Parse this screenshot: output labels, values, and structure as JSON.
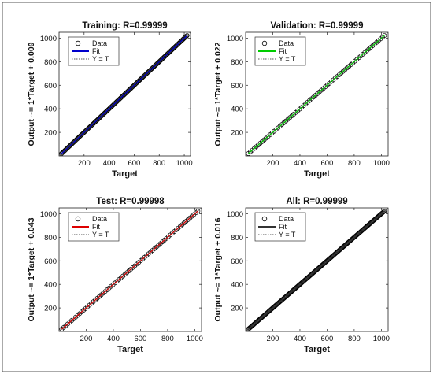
{
  "colors": {
    "data_marker": "#000000",
    "fit_training": "#0000cc",
    "fit_validation": "#00cc00",
    "fit_test": "#dd0000",
    "fit_all": "#333333",
    "identity": "#555555",
    "border": "#555555"
  },
  "legend_labels": {
    "data": "Data",
    "fit": "Fit",
    "identity": "Y = T"
  },
  "chart_data": [
    {
      "type": "scatter",
      "title": "Training: R=0.99999",
      "xlabel": "Target",
      "ylabel": "Output ~= 1*Target + 0.009",
      "xlim": [
        0,
        1050
      ],
      "ylim": [
        0,
        1050
      ],
      "xticks": [
        200,
        400,
        600,
        800,
        1000
      ],
      "yticks": [
        200,
        400,
        600,
        800,
        1000
      ],
      "fit": {
        "slope": 1,
        "intercept": 0.009
      },
      "data_range": [
        20,
        1023
      ],
      "point_count": 160,
      "series": [
        {
          "name": "Data",
          "kind": "markers"
        },
        {
          "name": "Fit",
          "kind": "line"
        },
        {
          "name": "Y = T",
          "kind": "dotted-line"
        }
      ],
      "legend": "top-left",
      "fit_color_key": "fit_training"
    },
    {
      "type": "scatter",
      "title": "Validation: R=0.99999",
      "xlabel": "Target",
      "ylabel": "Output ~= 1*Target + 0.022",
      "xlim": [
        0,
        1050
      ],
      "ylim": [
        0,
        1050
      ],
      "xticks": [
        200,
        400,
        600,
        800,
        1000
      ],
      "yticks": [
        200,
        400,
        600,
        800,
        1000
      ],
      "fit": {
        "slope": 1,
        "intercept": 0.022
      },
      "data_range": [
        20,
        1023
      ],
      "point_count": 70,
      "series": [
        {
          "name": "Data",
          "kind": "markers"
        },
        {
          "name": "Fit",
          "kind": "line"
        },
        {
          "name": "Y = T",
          "kind": "dotted-line"
        }
      ],
      "legend": "top-left",
      "fit_color_key": "fit_validation"
    },
    {
      "type": "scatter",
      "title": "Test: R=0.99998",
      "xlabel": "Target",
      "ylabel": "Output ~= 1*Target + 0.043",
      "xlim": [
        0,
        1050
      ],
      "ylim": [
        0,
        1050
      ],
      "xticks": [
        200,
        400,
        600,
        800,
        1000
      ],
      "yticks": [
        200,
        400,
        600,
        800,
        1000
      ],
      "fit": {
        "slope": 1,
        "intercept": 0.043
      },
      "data_range": [
        20,
        1023
      ],
      "point_count": 70,
      "series": [
        {
          "name": "Data",
          "kind": "markers"
        },
        {
          "name": "Fit",
          "kind": "line"
        },
        {
          "name": "Y = T",
          "kind": "dotted-line"
        }
      ],
      "legend": "top-left",
      "fit_color_key": "fit_test"
    },
    {
      "type": "scatter",
      "title": "All: R=0.99999",
      "xlabel": "Target",
      "ylabel": "Output ~= 1*Target + 0.016",
      "xlim": [
        0,
        1050
      ],
      "ylim": [
        0,
        1050
      ],
      "xticks": [
        200,
        400,
        600,
        800,
        1000
      ],
      "yticks": [
        200,
        400,
        600,
        800,
        1000
      ],
      "fit": {
        "slope": 1,
        "intercept": 0.016
      },
      "data_range": [
        20,
        1023
      ],
      "point_count": 200,
      "series": [
        {
          "name": "Data",
          "kind": "markers"
        },
        {
          "name": "Fit",
          "kind": "line"
        },
        {
          "name": "Y = T",
          "kind": "dotted-line"
        }
      ],
      "legend": "top-left",
      "fit_color_key": "fit_all"
    }
  ]
}
